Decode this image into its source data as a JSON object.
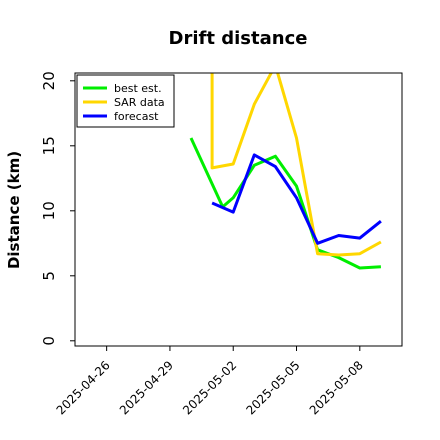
{
  "chart_data": {
    "type": "line",
    "title": "Drift distance",
    "xlabel": "",
    "ylabel": "Distance (km)",
    "ylim": [
      -0.4,
      20.6
    ],
    "xlim": [
      "2025-04-24T12:00",
      "2025-05-10T00:00"
    ],
    "yticks": [
      0,
      5,
      10,
      15,
      20
    ],
    "xticks": [
      "2025-04-26",
      "2025-04-29",
      "2025-05-02",
      "2025-05-05",
      "2025-05-08"
    ],
    "grid": false,
    "legend_position": "top-left",
    "series": [
      {
        "name": "best est.",
        "color": "#00ee00",
        "x": [
          "2025-04-30T00:00",
          "2025-04-31T12:00",
          "2025-05-02T00:00",
          "2025-05-03T00:00",
          "2025-05-04T00:00",
          "2025-05-05T00:00",
          "2025-05-06T00:00",
          "2025-05-07T00:00",
          "2025-05-08T00:00",
          "2025-05-09T00:00"
        ],
        "y": [
          15.6,
          10.3,
          11.0,
          13.5,
          14.2,
          11.9,
          7.0,
          6.4,
          5.6,
          5.7
        ]
      },
      {
        "name": "SAR data",
        "color": "#ffd700",
        "x": [
          "2025-04-31T00:00",
          "2025-05-01T00:00",
          "2025-05-02T00:00",
          "2025-05-03T00:00",
          "2025-05-04T00:00",
          "2025-05-05T00:00",
          "2025-05-06T00:00",
          "2025-05-07T00:00",
          "2025-05-08T00:00",
          "2025-05-09T00:00"
        ],
        "y": [
          20.8,
          13.3,
          13.6,
          18.2,
          21.2,
          15.6,
          6.7,
          6.6,
          6.7,
          7.6
        ]
      },
      {
        "name": "forecast",
        "color": "#0000ff",
        "x": [
          "2025-05-01T00:00",
          "2025-05-02T00:00",
          "2025-05-03T00:00",
          "2025-05-04T00:00",
          "2025-05-05T00:00",
          "2025-05-06T00:00",
          "2025-05-07T00:00",
          "2025-05-08T00:00",
          "2025-05-09T00:00"
        ],
        "y": [
          10.6,
          9.9,
          14.3,
          13.4,
          11.0,
          7.5,
          8.1,
          7.9,
          9.2
        ]
      }
    ]
  }
}
